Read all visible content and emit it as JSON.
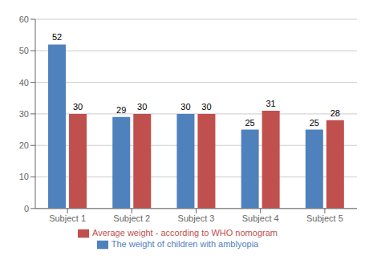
{
  "chart_data": {
    "type": "bar",
    "categories": [
      "Subject 1",
      "Subject 2",
      "Subject 3",
      "Subject 4",
      "Subject 5"
    ],
    "series": [
      {
        "name": "The weight of children with amblyopia",
        "color": "#4F81BD",
        "values": [
          52,
          29,
          30,
          25,
          25
        ]
      },
      {
        "name": "Average weight - according to WHO nomogram",
        "color": "#C0504D",
        "values": [
          30,
          30,
          30,
          31,
          28
        ]
      }
    ],
    "ylim": [
      0,
      60
    ],
    "yticks": [
      0,
      10,
      20,
      30,
      40,
      50,
      60
    ],
    "grid": true,
    "legend": "bottom",
    "data_labels": true
  }
}
